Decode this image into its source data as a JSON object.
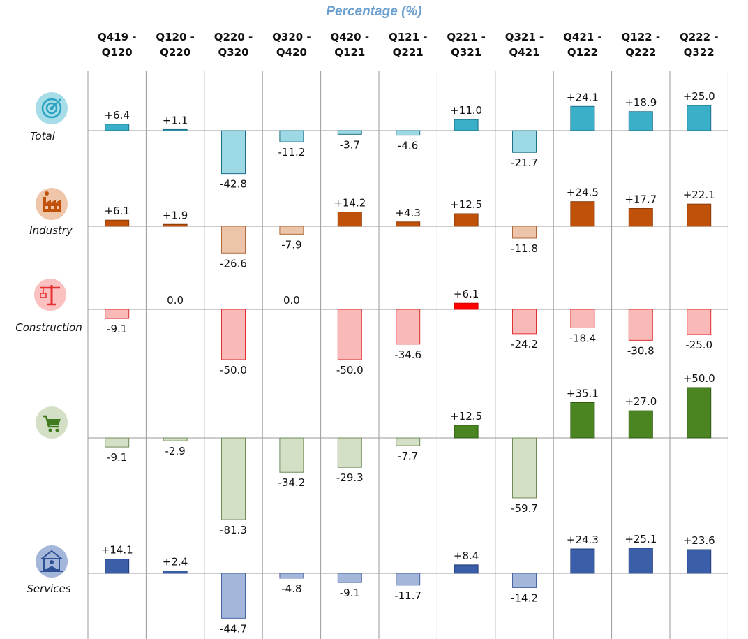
{
  "chart_data": {
    "type": "bar",
    "title": "Percentage (%)",
    "categories": [
      "Q419 - Q120",
      "Q120 - Q220",
      "Q220 - Q320",
      "Q320 - Q420",
      "Q420 - Q121",
      "Q121 - Q221",
      "Q221 - Q321",
      "Q321 - Q421",
      "Q421 - Q122",
      "Q122 - Q222",
      "Q222 - Q322"
    ],
    "series": [
      {
        "name": "Total",
        "icon": "target-icon",
        "color_pos": "#3aafc8",
        "color_neg": "#9dd8e5",
        "edge_pos": "#1e6f8a",
        "edge_neg": "#1e6f8a",
        "values": [
          6.4,
          1.1,
          -42.8,
          -11.2,
          -3.7,
          -4.6,
          11.0,
          -21.7,
          24.1,
          18.9,
          25.0
        ],
        "labels": [
          "+6.4",
          "+1.1",
          "-42.8",
          "-11.2",
          "-3.7",
          "-4.6",
          "+11.0",
          "-21.7",
          "+24.1",
          "+18.9",
          "+25.0"
        ]
      },
      {
        "name": "Industry",
        "icon": "factory-icon",
        "color_pos": "#c0510a",
        "color_neg": "#ecc4aa",
        "edge_pos": "#8a3a07",
        "edge_neg": "#b06a3a",
        "values": [
          6.1,
          1.9,
          -26.6,
          -7.9,
          14.2,
          4.3,
          12.5,
          -11.8,
          24.5,
          17.7,
          22.1
        ],
        "labels": [
          "+6.1",
          "+1.9",
          "-26.6",
          "-7.9",
          "+14.2",
          "+4.3",
          "+12.5",
          "-11.8",
          "+24.5",
          "+17.7",
          "+22.1"
        ]
      },
      {
        "name": "Construction",
        "icon": "crane-icon",
        "color_pos": "#ff0000",
        "color_neg": "#f9b9b9",
        "edge_pos": "#cc0000",
        "edge_neg": "#e03030",
        "values": [
          -9.1,
          0.0,
          -50.0,
          0.0,
          -50.0,
          -34.6,
          6.1,
          -24.2,
          -18.4,
          -30.8,
          -25.0
        ],
        "labels": [
          "-9.1",
          "0.0",
          "-50.0",
          "0.0",
          "-50.0",
          "-34.6",
          "+6.1",
          "-24.2",
          "-18.4",
          "-30.8",
          "-25.0"
        ]
      },
      {
        "name": "",
        "icon": "cart-icon",
        "color_pos": "#4a8522",
        "color_neg": "#d3e0c5",
        "edge_pos": "#2f5a14",
        "edge_neg": "#6f8a58",
        "values": [
          -9.1,
          -2.9,
          -81.3,
          -34.2,
          -29.3,
          -7.7,
          12.5,
          -59.7,
          35.1,
          27.0,
          50.0
        ],
        "labels": [
          "-9.1",
          "-2.9",
          "-81.3",
          "-34.2",
          "-29.3",
          "-7.7",
          "+12.5",
          "-59.7",
          "+35.1",
          "+27.0",
          "+50.0"
        ]
      },
      {
        "name": "Services",
        "icon": "services-icon",
        "color_pos": "#3a5ea8",
        "color_neg": "#a4b6d9",
        "edge_pos": "#1f3a78",
        "edge_neg": "#4a64a0",
        "values": [
          14.1,
          2.4,
          -44.7,
          -4.8,
          -9.1,
          -11.7,
          8.4,
          -14.2,
          24.3,
          25.1,
          23.6
        ],
        "labels": [
          "+14.1",
          "+2.4",
          "-44.7",
          "-4.8",
          "-9.1",
          "-11.7",
          "+8.4",
          "-14.2",
          "+24.3",
          "+25.1",
          "+23.6"
        ]
      }
    ],
    "grid": true,
    "legend": "left"
  }
}
